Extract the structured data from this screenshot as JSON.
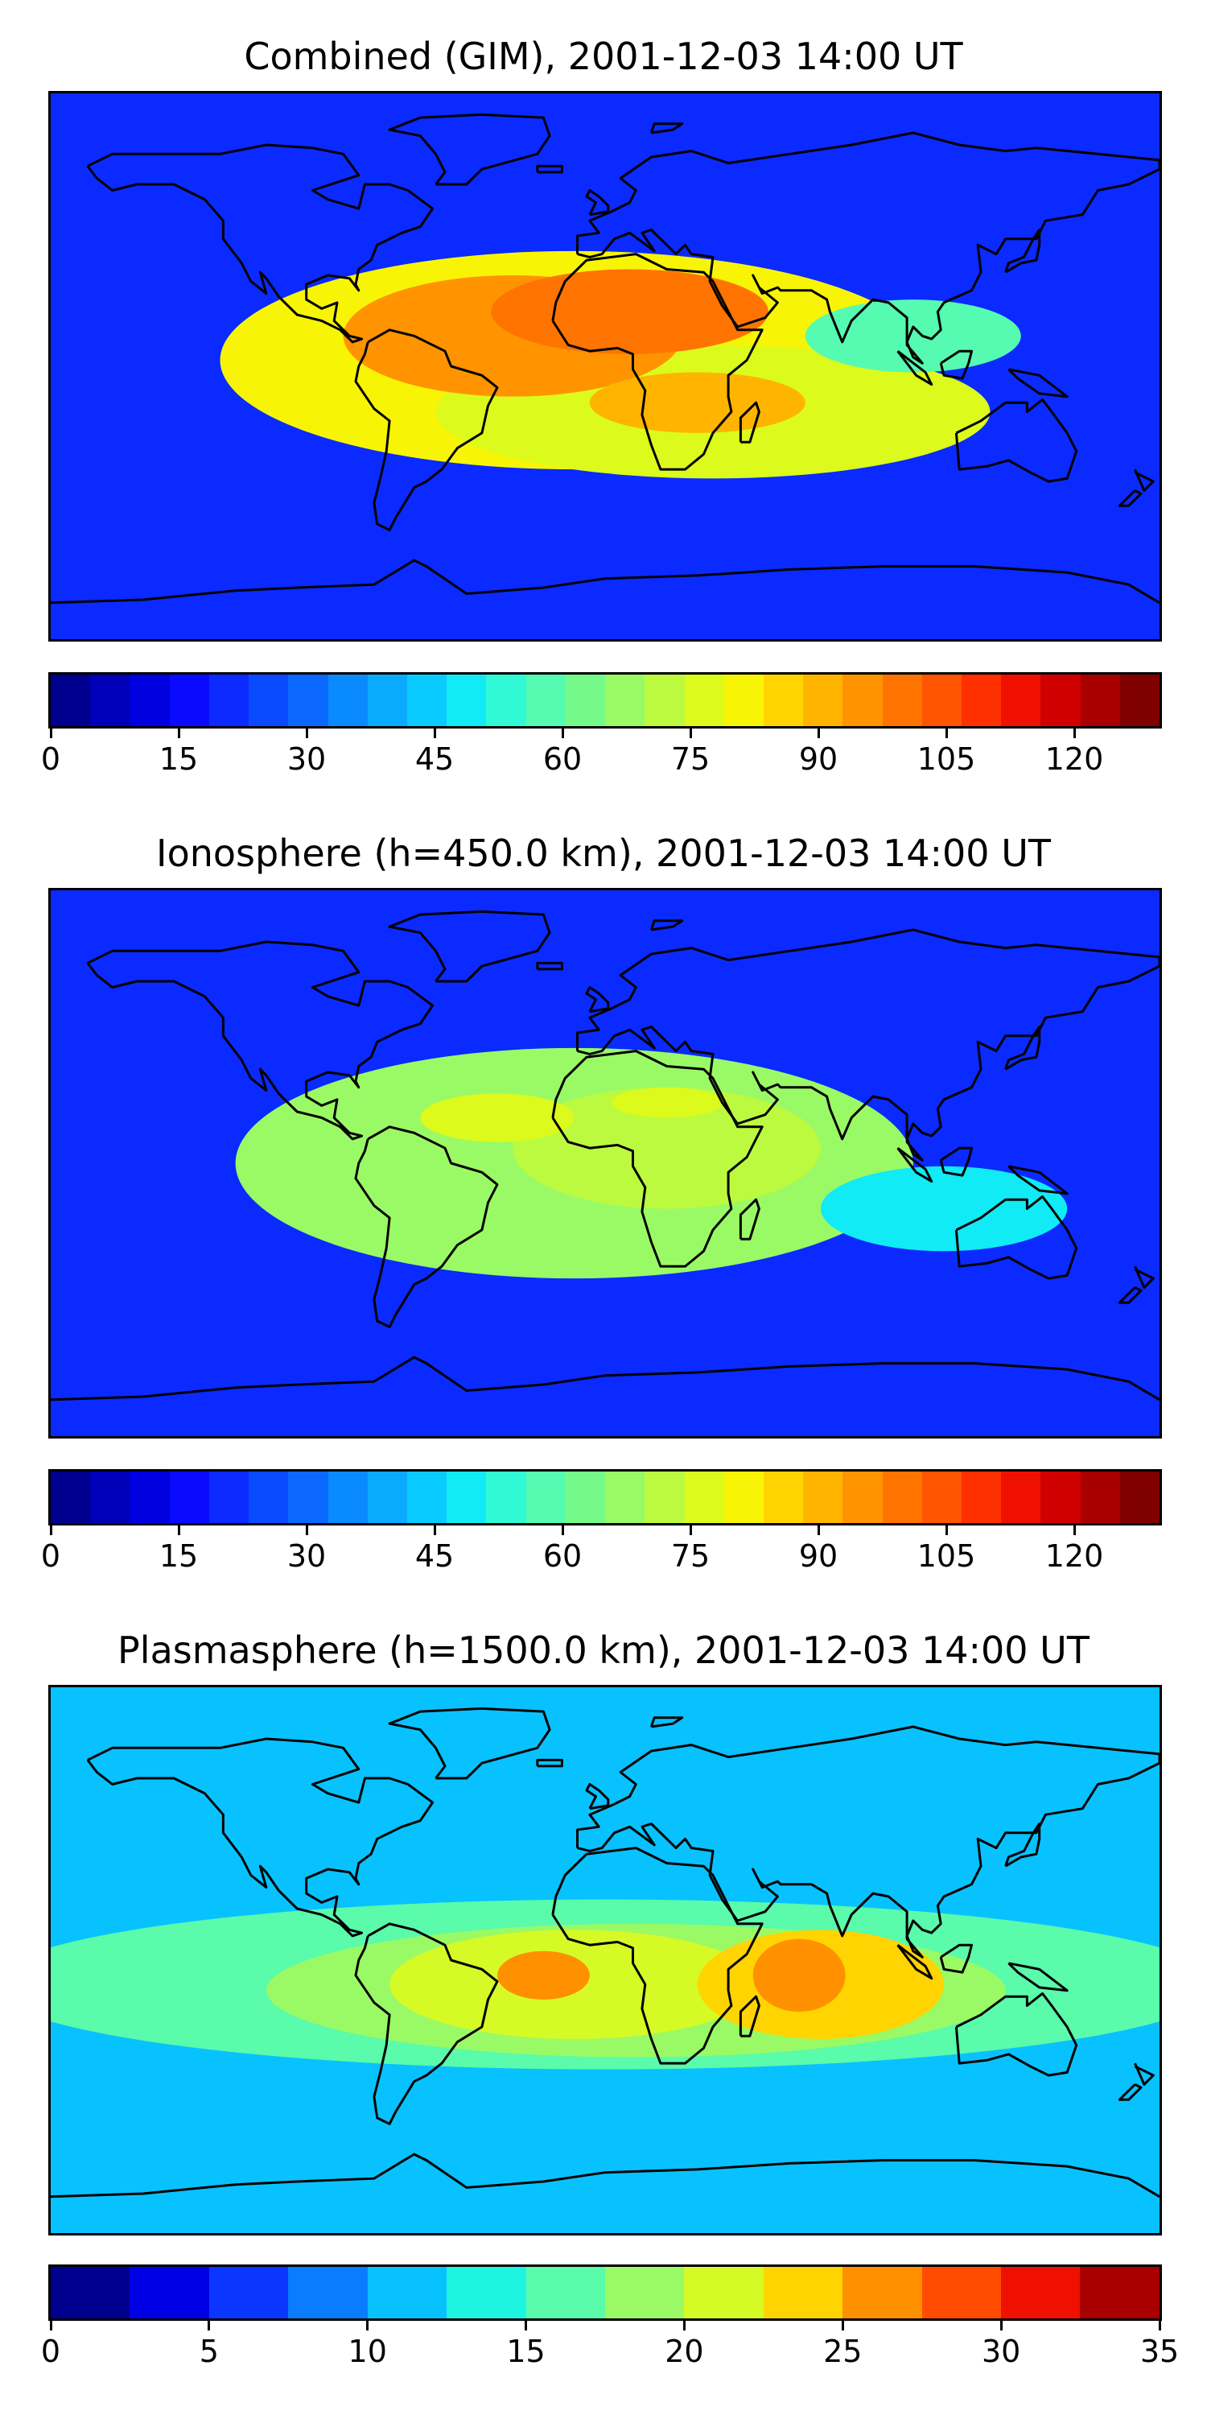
{
  "panels": [
    {
      "title": "Combined (GIM), 2001-12-03 14:00 UT",
      "colorbar": {
        "ticks": [
          "0",
          "15",
          "30",
          "45",
          "60",
          "75",
          "90",
          "105",
          "120"
        ],
        "tick_values": [
          0,
          15,
          30,
          45,
          60,
          75,
          90,
          105,
          120
        ],
        "range": [
          0,
          130
        ],
        "colors": [
          "#00008f",
          "#0000b8",
          "#0000e0",
          "#0a0aff",
          "#0a2aff",
          "#0a4aff",
          "#0a68ff",
          "#0a8aff",
          "#0aaaff",
          "#0acbff",
          "#10ebf5",
          "#30fad5",
          "#55fbb0",
          "#75fa8a",
          "#9afa65",
          "#bcfa40",
          "#dcfa1c",
          "#f7f505",
          "#ffd400",
          "#ffb400",
          "#ff9400",
          "#ff7400",
          "#ff5400",
          "#ff3000",
          "#f01000",
          "#d00000",
          "#a80000",
          "#800000"
        ],
        "blobs": [
          {
            "lon": -10,
            "lat": 2,
            "rlon": 115,
            "rlat": 36,
            "level": 17
          },
          {
            "lon": 35,
            "lat": -15,
            "rlon": 90,
            "rlat": 22,
            "level": 16
          },
          {
            "lon": -30,
            "lat": 10,
            "rlon": 55,
            "rlat": 20,
            "level": 20
          },
          {
            "lon": 8,
            "lat": 18,
            "rlon": 45,
            "rlat": 14,
            "level": 21
          },
          {
            "lon": 30,
            "lat": -12,
            "rlon": 35,
            "rlat": 10,
            "level": 19
          },
          {
            "lon": 100,
            "lat": 10,
            "rlon": 35,
            "rlat": 12,
            "level": 12
          }
        ]
      }
    },
    {
      "title": "Ionosphere  (h=450.0 km), 2001-12-03 14:00 UT",
      "colorbar": {
        "ticks": [
          "0",
          "15",
          "30",
          "45",
          "60",
          "75",
          "90",
          "105",
          "120"
        ],
        "tick_values": [
          0,
          15,
          30,
          45,
          60,
          75,
          90,
          105,
          120
        ],
        "range": [
          0,
          130
        ],
        "colors": [
          "#00008f",
          "#0000b8",
          "#0000e0",
          "#0a0aff",
          "#0a2aff",
          "#0a4aff",
          "#0a68ff",
          "#0a8aff",
          "#0aaaff",
          "#0acbff",
          "#10ebf5",
          "#30fad5",
          "#55fbb0",
          "#75fa8a",
          "#9afa65",
          "#bcfa40",
          "#dcfa1c",
          "#f7f505",
          "#ffd400",
          "#ffb400",
          "#ff9400",
          "#ff7400",
          "#ff5400",
          "#ff3000",
          "#f01000",
          "#d00000",
          "#a80000",
          "#800000"
        ],
        "blobs": [
          {
            "lon": -10,
            "lat": 0,
            "rlon": 110,
            "rlat": 38,
            "level": 14
          },
          {
            "lon": 20,
            "lat": 5,
            "rlon": 50,
            "rlat": 20,
            "level": 15
          },
          {
            "lon": -35,
            "lat": 15,
            "rlon": 25,
            "rlat": 8,
            "level": 16
          },
          {
            "lon": 20,
            "lat": 20,
            "rlon": 18,
            "rlat": 5,
            "level": 16
          },
          {
            "lon": 110,
            "lat": -15,
            "rlon": 40,
            "rlat": 14,
            "level": 10
          }
        ]
      }
    },
    {
      "title": "Plasmasphere (h=1500.0 km), 2001-12-03 14:00 UT",
      "colorbar": {
        "ticks": [
          "0",
          "5",
          "10",
          "15",
          "20",
          "25",
          "30",
          "35"
        ],
        "tick_values": [
          0,
          5,
          10,
          15,
          20,
          25,
          30,
          35
        ],
        "range": [
          0,
          35
        ],
        "colors": [
          "#00008f",
          "#0000e6",
          "#0a36ff",
          "#0a7cff",
          "#08c2ff",
          "#1ef5e0",
          "#5afbaa",
          "#9afa65",
          "#d6fa25",
          "#ffd400",
          "#ff9000",
          "#ff4c00",
          "#f01000",
          "#a80000"
        ],
        "blobs": [
          {
            "lon": 0,
            "lat": -8,
            "rlon": 200,
            "rlat": 28,
            "level": 6
          },
          {
            "lon": 10,
            "lat": -10,
            "rlon": 120,
            "rlat": 22,
            "level": 7
          },
          {
            "lon": -10,
            "lat": -8,
            "rlon": 60,
            "rlat": 18,
            "level": 8
          },
          {
            "lon": 70,
            "lat": -8,
            "rlon": 40,
            "rlat": 18,
            "level": 9
          },
          {
            "lon": -20,
            "lat": -5,
            "rlon": 15,
            "rlat": 8,
            "level": 10
          },
          {
            "lon": 63,
            "lat": -5,
            "rlon": 15,
            "rlat": 12,
            "level": 10
          }
        ]
      }
    }
  ]
}
